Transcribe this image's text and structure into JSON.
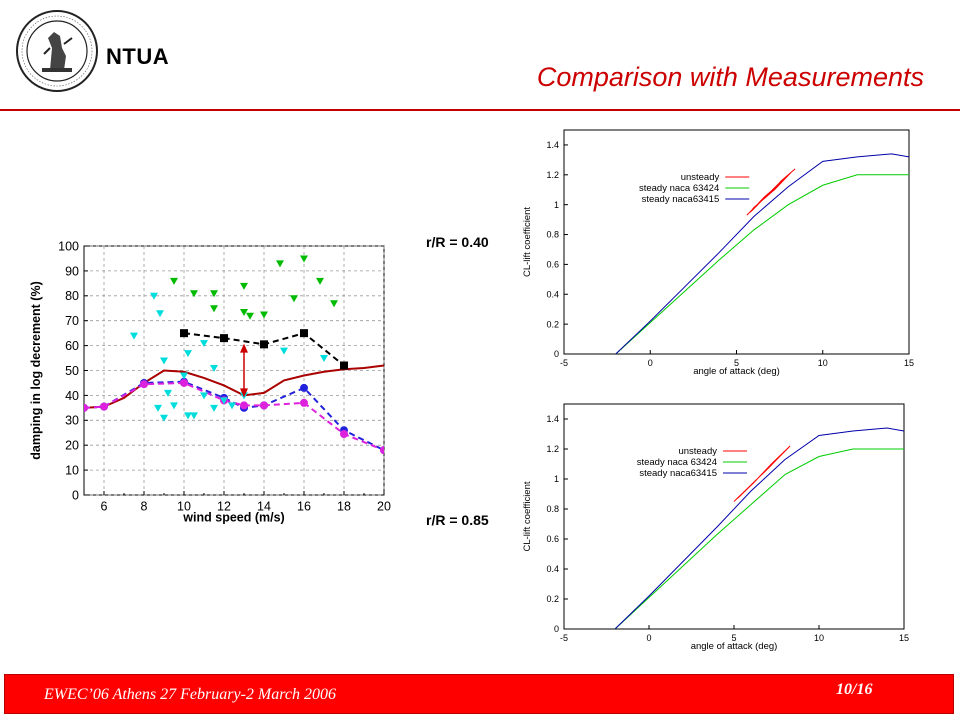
{
  "header": {
    "brand": "NTUA",
    "title": "Comparison with Measurements"
  },
  "footer": {
    "text": "EWEC’06 Athens 27 February-2 March 2006",
    "page": "10/16"
  },
  "labels": {
    "r1": "r/R = 0.40",
    "r2": "r/R = 0.85"
  },
  "colors": {
    "title": "#cc0000",
    "rule": "#c40000",
    "footer": "#ff0000"
  },
  "chart_data": [
    {
      "type": "line",
      "xlabel": "wind speed (m/s)",
      "ylabel": "damping in log decrement (%)",
      "xlim": [
        5,
        20
      ],
      "ylim": [
        0,
        100
      ],
      "xticks": [
        6,
        8,
        10,
        12,
        14,
        16,
        18,
        20
      ],
      "yticks": [
        0,
        10,
        20,
        30,
        40,
        50,
        60,
        70,
        80,
        90,
        100
      ],
      "grid": true,
      "series": [
        {
          "style": "solid-line",
          "color": "#aa0000",
          "points": [
            [
              5,
              35
            ],
            [
              6,
              35.5
            ],
            [
              7,
              39
            ],
            [
              8,
              45
            ],
            [
              9,
              50
            ],
            [
              10,
              49.5
            ],
            [
              11,
              47
            ],
            [
              12,
              44
            ],
            [
              13,
              40
            ],
            [
              14,
              41
            ],
            [
              15,
              46
            ],
            [
              16,
              48
            ],
            [
              17,
              49.5
            ],
            [
              18,
              50.5
            ],
            [
              19,
              51
            ],
            [
              20,
              52
            ]
          ]
        },
        {
          "style": "dashed-square",
          "color": "#000000",
          "points": [
            [
              10,
              65
            ],
            [
              12,
              63
            ],
            [
              14,
              60.5
            ],
            [
              16,
              65
            ],
            [
              18,
              52
            ]
          ]
        },
        {
          "style": "dashed-circle",
          "color": "#2222dd",
          "points": [
            [
              5,
              35
            ],
            [
              6,
              35.5
            ],
            [
              8,
              45
            ],
            [
              10,
              45.5
            ],
            [
              12,
              39
            ],
            [
              13,
              35
            ],
            [
              14,
              36
            ],
            [
              16,
              43
            ],
            [
              18,
              26
            ],
            [
              20,
              18
            ]
          ]
        },
        {
          "style": "dashed-circle",
          "color": "#dd22dd",
          "points": [
            [
              5,
              35
            ],
            [
              6,
              35.5
            ],
            [
              8,
              44.5
            ],
            [
              10,
              45
            ],
            [
              12,
              38
            ],
            [
              13,
              36
            ],
            [
              14,
              36
            ],
            [
              16,
              37
            ],
            [
              18,
              24.5
            ],
            [
              20,
              18
            ]
          ]
        },
        {
          "style": "scatter-triangle",
          "color": "#00bb00",
          "points": [
            [
              9.5,
              86
            ],
            [
              10.5,
              81
            ],
            [
              11.5,
              81
            ],
            [
              11.5,
              75
            ],
            [
              13,
              84
            ],
            [
              13,
              73.5
            ],
            [
              13.3,
              72
            ],
            [
              14,
              72.5
            ],
            [
              14.8,
              93
            ],
            [
              15.5,
              79
            ],
            [
              16,
              95
            ],
            [
              16.8,
              86
            ],
            [
              17.5,
              77
            ]
          ]
        },
        {
          "style": "scatter-triangle",
          "color": "#00dddd",
          "points": [
            [
              7.5,
              64
            ],
            [
              8.5,
              80
            ],
            [
              8.8,
              73
            ],
            [
              9,
              54
            ],
            [
              9.2,
              41
            ],
            [
              9.5,
              36
            ],
            [
              10,
              48
            ],
            [
              10.2,
              57
            ],
            [
              10.5,
              32
            ],
            [
              11,
              40
            ],
            [
              11,
              61
            ],
            [
              11.5,
              51
            ],
            [
              11.5,
              35
            ],
            [
              12,
              38
            ],
            [
              12.4,
              36
            ],
            [
              13,
              40
            ],
            [
              15,
              58
            ],
            [
              17,
              55
            ],
            [
              8.7,
              35
            ],
            [
              9,
              31
            ],
            [
              10.2,
              32
            ]
          ]
        }
      ],
      "annotations": [
        {
          "type": "arrow",
          "color": "#cc0000",
          "from": [
            13,
            40
          ],
          "to": [
            13,
            60
          ]
        }
      ]
    },
    {
      "type": "line",
      "xlabel": "angle of attack (deg)",
      "ylabel": "CL-lift coefficient",
      "xlim": [
        -5,
        15
      ],
      "ylim": [
        0,
        1.5
      ],
      "xticks": [
        -5,
        0,
        5,
        10,
        15
      ],
      "yticks": [
        0,
        0.2,
        0.4,
        0.6,
        0.8,
        1,
        1.2,
        1.4
      ],
      "ytick_labels": [
        "0",
        "0.2",
        "0.4",
        "0.6",
        "0.8",
        "1",
        "1.2",
        "1.4"
      ],
      "legend": "top-left",
      "series": [
        {
          "name": "unsteady",
          "color": "#ff0000",
          "points": [
            [
              5.6,
              0.93
            ],
            [
              6.2,
              1.0
            ],
            [
              7.0,
              1.09
            ],
            [
              7.8,
              1.18
            ],
            [
              8.4,
              1.24
            ],
            [
              7.6,
              1.16
            ],
            [
              6.8,
              1.06
            ],
            [
              6.0,
              0.98
            ],
            [
              5.8,
              0.95
            ],
            [
              6.6,
              1.05
            ],
            [
              7.4,
              1.13
            ],
            [
              8.2,
              1.22
            ],
            [
              7.2,
              1.1
            ],
            [
              6.4,
              1.02
            ],
            [
              5.9,
              0.96
            ]
          ]
        },
        {
          "name": "steady naca 63424",
          "color": "#00cc00",
          "points": [
            [
              -2,
              0.0
            ],
            [
              0,
              0.21
            ],
            [
              2,
              0.42
            ],
            [
              4,
              0.63
            ],
            [
              6,
              0.83
            ],
            [
              8,
              1.0
            ],
            [
              10,
              1.13
            ],
            [
              12,
              1.2
            ],
            [
              13,
              1.2
            ],
            [
              15,
              1.2
            ]
          ]
        },
        {
          "name": "steady naca63415",
          "color": "#0000aa",
          "points": [
            [
              -2,
              0.0
            ],
            [
              0,
              0.22
            ],
            [
              2,
              0.45
            ],
            [
              4,
              0.68
            ],
            [
              6,
              0.92
            ],
            [
              8,
              1.12
            ],
            [
              10,
              1.29
            ],
            [
              12,
              1.32
            ],
            [
              14,
              1.34
            ],
            [
              15,
              1.32
            ]
          ]
        }
      ]
    },
    {
      "type": "line",
      "xlabel": "angle of attack (deg)",
      "ylabel": "CL-lift coefficient",
      "xlim": [
        -5,
        15
      ],
      "ylim": [
        0,
        1.5
      ],
      "xticks": [
        -5,
        0,
        5,
        10,
        15
      ],
      "yticks": [
        0,
        0.2,
        0.4,
        0.6,
        0.8,
        1,
        1.2,
        1.4
      ],
      "ytick_labels": [
        "0",
        "0.2",
        "0.4",
        "0.6",
        "0.8",
        "1",
        "1.2",
        "1.4"
      ],
      "legend": "top-left",
      "series": [
        {
          "name": "unsteady",
          "color": "#ff0000",
          "points": [
            [
              5,
              0.85
            ],
            [
              6,
              0.96
            ],
            [
              7,
              1.07
            ],
            [
              7.6,
              1.14
            ],
            [
              8.3,
              1.22
            ],
            [
              7.2,
              1.1
            ],
            [
              6.2,
              0.98
            ],
            [
              5.2,
              0.87
            ]
          ]
        },
        {
          "name": "steady naca 63424",
          "color": "#00cc00",
          "points": [
            [
              -2,
              0.0
            ],
            [
              0,
              0.21
            ],
            [
              2,
              0.42
            ],
            [
              4,
              0.63
            ],
            [
              6,
              0.83
            ],
            [
              8,
              1.03
            ],
            [
              10,
              1.15
            ],
            [
              12,
              1.2
            ],
            [
              15,
              1.2
            ]
          ]
        },
        {
          "name": "steady naca63415",
          "color": "#0000aa",
          "points": [
            [
              -2,
              0.0
            ],
            [
              0,
              0.22
            ],
            [
              2,
              0.45
            ],
            [
              4,
              0.68
            ],
            [
              6,
              0.92
            ],
            [
              8,
              1.13
            ],
            [
              10,
              1.29
            ],
            [
              12,
              1.32
            ],
            [
              14,
              1.34
            ],
            [
              15,
              1.32
            ]
          ]
        }
      ]
    }
  ]
}
